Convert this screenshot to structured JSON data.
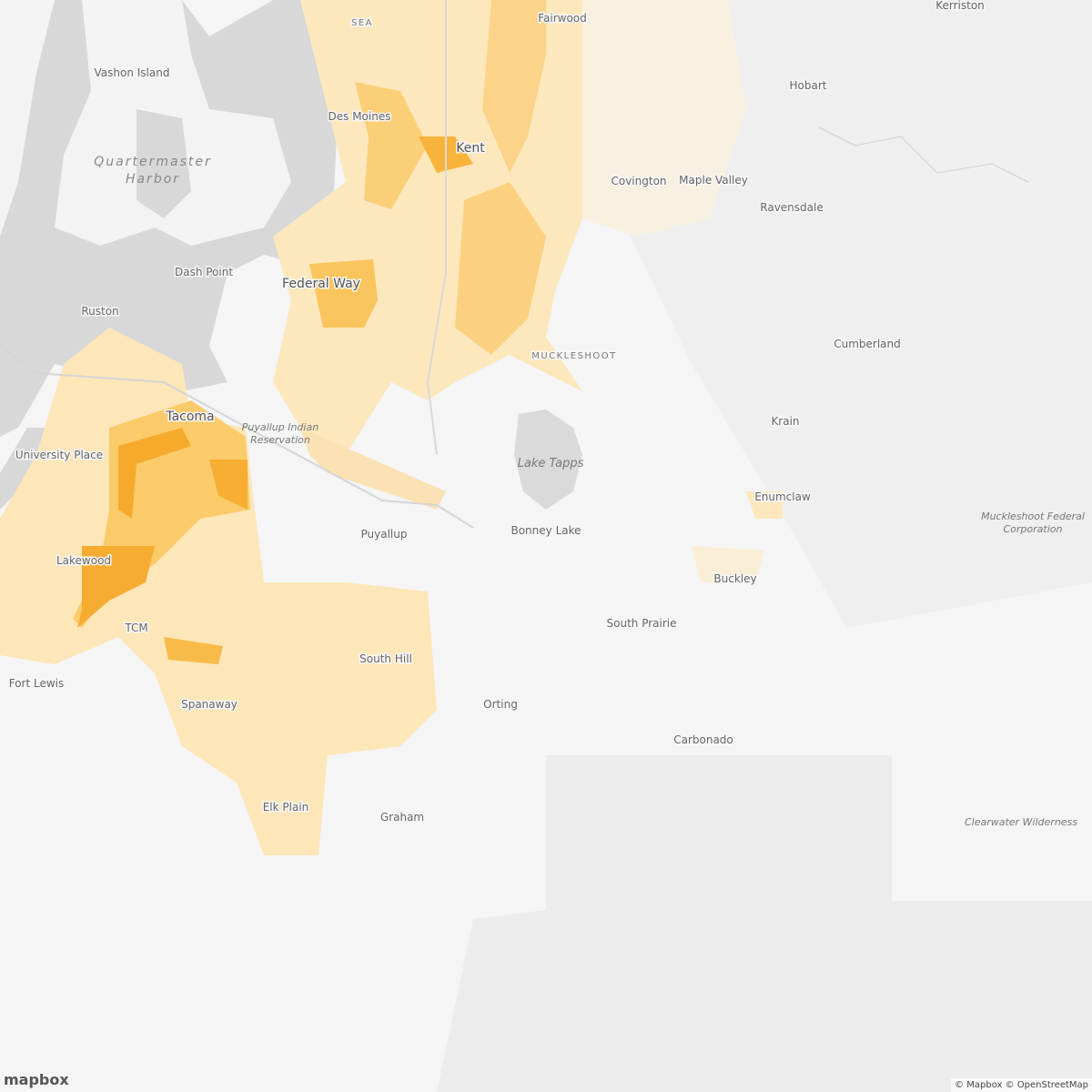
{
  "map": {
    "places": [
      "Kerriston",
      "SEA",
      "Fairwood",
      "Vashon Island",
      "Hobart",
      "Des Moines",
      "Kent",
      "Covington",
      "Maple Valley",
      "Ravensdale",
      "Dash Point",
      "Federal Way",
      "Ruston",
      "Cumberland",
      "Tacoma",
      "Krain",
      "University Place",
      "Enumclaw",
      "Bonney Lake",
      "Puyallup",
      "Lakewood",
      "Buckley",
      "South Prairie",
      "TCM",
      "South Hill",
      "Fort Lewis",
      "Spanaway",
      "Orting",
      "Carbonado",
      "Elk Plain",
      "Graham"
    ],
    "reserve_label": "MUCKLESHOOT",
    "water_labels": {
      "quartermaster": [
        "Quartermaster",
        "Harbor"
      ],
      "lake_tapps": "Lake Tapps"
    },
    "area_labels": {
      "reservation": [
        "Puyallup Indian",
        "Reservation"
      ],
      "federal": [
        "Muckleshoot Federal",
        "Corporation"
      ],
      "wilderness": "Clearwater Wilderness"
    }
  },
  "logo": "mapbox",
  "attribution": "© Mapbox © OpenStreetMap"
}
